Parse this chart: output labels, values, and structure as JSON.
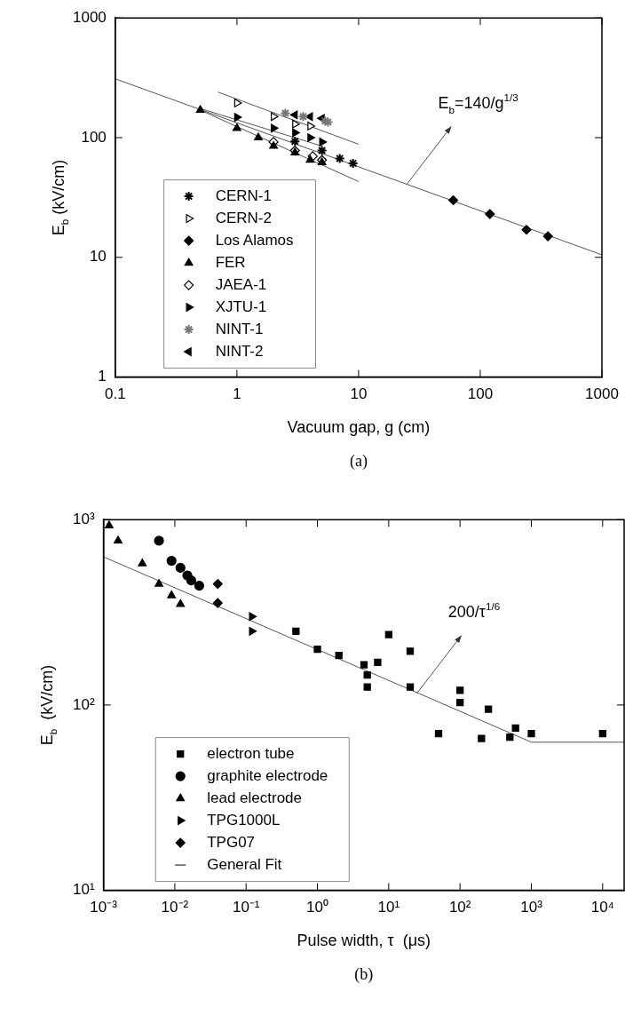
{
  "chart_data": [
    {
      "type": "scatter",
      "title": "(a)",
      "xlabel": "Vacuum gap, g (cm)",
      "ylabel": "E$_{b}$ (kV/cm)",
      "log": "xy",
      "xlim": [
        0.1,
        1000
      ],
      "ylim": [
        1,
        1000
      ],
      "xticks": [
        0.1,
        1,
        10,
        100,
        1000
      ],
      "yticks": [
        1,
        10,
        100,
        1000
      ],
      "grid": false,
      "legend": "bottom left",
      "annotations": [
        {
          "text": "E$_{b}$=140/g$^{1/3}$",
          "x": 25,
          "y": 41
        }
      ],
      "series": [
        {
          "name": "CERN-1",
          "color": "#000000",
          "marker": "cross",
          "x": [
            3,
            5,
            7,
            9
          ],
          "values": [
            93,
            78,
            67,
            61
          ]
        },
        {
          "name": "CERN-2",
          "color": "#000000",
          "marker": "triangle-right-open",
          "x": [
            1,
            2,
            3,
            4
          ],
          "values": [
            195,
            150,
            130,
            125
          ]
        },
        {
          "name": "Los Alamos",
          "color": "#000000",
          "marker": "diamond",
          "x": [
            60,
            120,
            240,
            360
          ],
          "values": [
            30,
            23,
            17,
            15
          ]
        },
        {
          "name": "FER",
          "color": "#000000",
          "marker": "triangle",
          "x": [
            0.5,
            1,
            1.5,
            2,
            3,
            4,
            5
          ],
          "values": [
            170,
            120,
            100,
            85,
            75,
            65,
            62
          ]
        },
        {
          "name": "JAEA-1",
          "color": "#000000",
          "marker": "diamond-open",
          "x": [
            2,
            3,
            4.2,
            5
          ],
          "values": [
            92,
            78,
            70,
            65
          ]
        },
        {
          "name": "XJTU-1",
          "color": "#000000",
          "marker": "triangle-right",
          "x": [
            1,
            2,
            3,
            4,
            5
          ],
          "values": [
            148,
            120,
            110,
            100,
            92
          ]
        },
        {
          "name": "NINT-1",
          "color": "#777777",
          "marker": "cross",
          "x": [
            2.5,
            3.5,
            5.3,
            5.6
          ],
          "values": [
            160,
            150,
            138,
            135
          ]
        },
        {
          "name": "NINT-2",
          "color": "#000000",
          "marker": "triangle-left",
          "x": [
            3,
            4,
            5
          ],
          "values": [
            155,
            150,
            145
          ]
        },
        {
          "type": "line",
          "color": "#555555",
          "marker": "none",
          "x": [
            0.1,
            1000
          ],
          "values": [
            310,
            10.5
          ]
        },
        {
          "type": "line",
          "color": "#555555",
          "marker": "none",
          "x": [
            0.7,
            10
          ],
          "values": [
            240,
            88
          ]
        },
        {
          "type": "line",
          "color": "#555555",
          "marker": "none",
          "x": [
            0.5,
            10
          ],
          "values": [
            170,
            43
          ]
        },
        {
          "type": "line",
          "color": "#555555",
          "marker": "none",
          "x": [
            0.5,
            5
          ],
          "values": [
            175,
            85
          ]
        }
      ]
    },
    {
      "type": "scatter",
      "title": "(b)",
      "xlabel": "Pulse width, τ  (μs)",
      "ylabel": "E$_{b}$  (kV/cm)",
      "log": "xy",
      "xlim": [
        0.001,
        20000
      ],
      "ylim": [
        10,
        1000
      ],
      "xticks": [
        {
          "value": 0.001,
          "label": "10⁻³"
        },
        {
          "value": 0.01,
          "label": "10⁻²"
        },
        {
          "value": 0.1,
          "label": "10⁻¹"
        },
        {
          "value": 1,
          "label": "10⁰"
        },
        {
          "value": 10,
          "label": "10¹"
        },
        {
          "value": 100,
          "label": "10²"
        },
        {
          "value": 1000,
          "label": "10³"
        },
        {
          "value": 10000,
          "label": "10⁴"
        }
      ],
      "yticks": [
        {
          "value": 10,
          "label": "10¹"
        },
        {
          "value": 100,
          "label": "10²"
        },
        {
          "value": 1000,
          "label": "10³"
        }
      ],
      "grid": false,
      "legend": "bottom left",
      "annotations": [
        {
          "text": "200/τ$^{1/6}$",
          "x": 25,
          "y": 116
        }
      ],
      "series": [
        {
          "name": "electron tube",
          "color": "#000000",
          "marker": "square",
          "x": [
            0.5,
            1,
            2,
            4.5,
            5,
            5,
            7,
            10,
            20,
            20,
            50,
            100,
            100,
            200,
            250,
            500,
            600,
            1000,
            10000
          ],
          "values": [
            250,
            200,
            185,
            165,
            145,
            125,
            170,
            240,
            195,
            125,
            70,
            120,
            103,
            66,
            95,
            67,
            75,
            70,
            70
          ]
        },
        {
          "name": "graphite electrode",
          "color": "#000000",
          "marker": "circle",
          "x": [
            0.006,
            0.009,
            0.012,
            0.015,
            0.017,
            0.022
          ],
          "values": [
            770,
            600,
            550,
            500,
            470,
            440
          ]
        },
        {
          "name": "lead electrode",
          "color": "#000000",
          "marker": "triangle",
          "x": [
            0.0012,
            0.0016,
            0.0035,
            0.006,
            0.009,
            0.012
          ],
          "values": [
            930,
            770,
            580,
            450,
            390,
            350
          ]
        },
        {
          "name": "TPG1000L",
          "color": "#000000",
          "marker": "triangle-right",
          "x": [
            0.12,
            0.12
          ],
          "values": [
            300,
            250
          ]
        },
        {
          "name": "TPG07",
          "color": "#000000",
          "marker": "diamond",
          "x": [
            0.04,
            0.04
          ],
          "values": [
            450,
            355
          ]
        },
        {
          "name": "General Fit",
          "type": "line",
          "color": "#555555",
          "marker": "none",
          "x": [
            0.001,
            1000,
            20000
          ],
          "values": [
            630,
            63,
            63
          ]
        }
      ]
    }
  ]
}
